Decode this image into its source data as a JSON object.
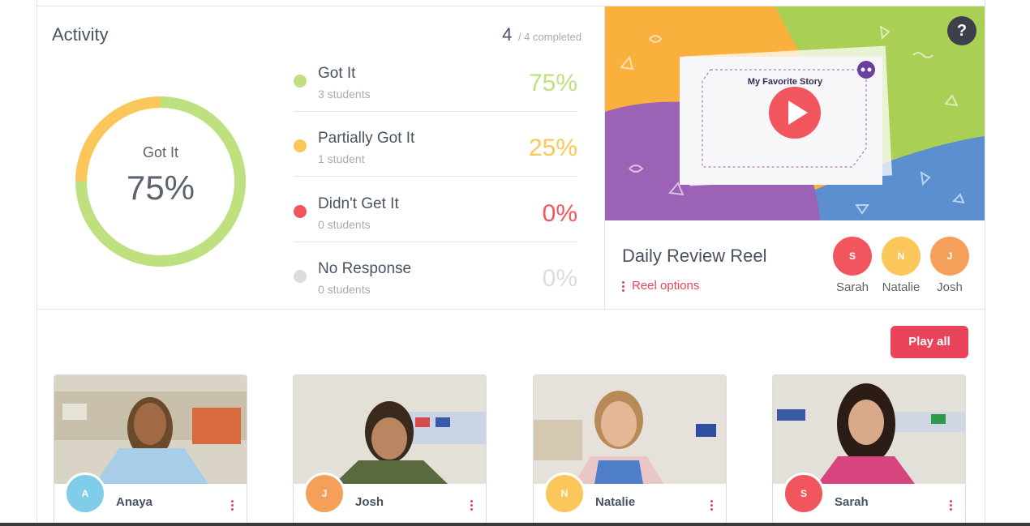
{
  "activity": {
    "title": "Activity",
    "completed_count": "4",
    "completed_label": "/ 4 completed",
    "donut": {
      "label": "Got It",
      "percent_text": "75%",
      "got_it_fraction": 0.75,
      "partial_fraction": 0.25
    },
    "results": [
      {
        "label": "Got It",
        "sub": "3 students",
        "percent": "75%",
        "color": "#bfe07f"
      },
      {
        "label": "Partially Got It",
        "sub": "1 student",
        "percent": "25%",
        "color": "#fcc75a"
      },
      {
        "label": "Didn't Get It",
        "sub": "0 students",
        "percent": "0%",
        "color": "#f1565e"
      },
      {
        "label": "No Response",
        "sub": "0 students",
        "percent": "0%",
        "color": "#dcdcdc"
      }
    ]
  },
  "reel": {
    "video_title": "My Favorite Story",
    "title": "Daily Review Reel",
    "options_label": "Reel options",
    "help_label": "?",
    "avatars": [
      {
        "initial": "S",
        "name": "Sarah",
        "color": "#f1565e"
      },
      {
        "initial": "N",
        "name": "Natalie",
        "color": "#fcc75a"
      },
      {
        "initial": "J",
        "name": "Josh",
        "color": "#f4a05b"
      }
    ]
  },
  "play_all_label": "Play all",
  "students": [
    {
      "initial": "A",
      "name": "Anaya",
      "color": "#7fcde8"
    },
    {
      "initial": "J",
      "name": "Josh",
      "color": "#f4a05b"
    },
    {
      "initial": "N",
      "name": "Natalie",
      "color": "#fcc75a"
    },
    {
      "initial": "S",
      "name": "Sarah",
      "color": "#f1565e"
    }
  ]
}
